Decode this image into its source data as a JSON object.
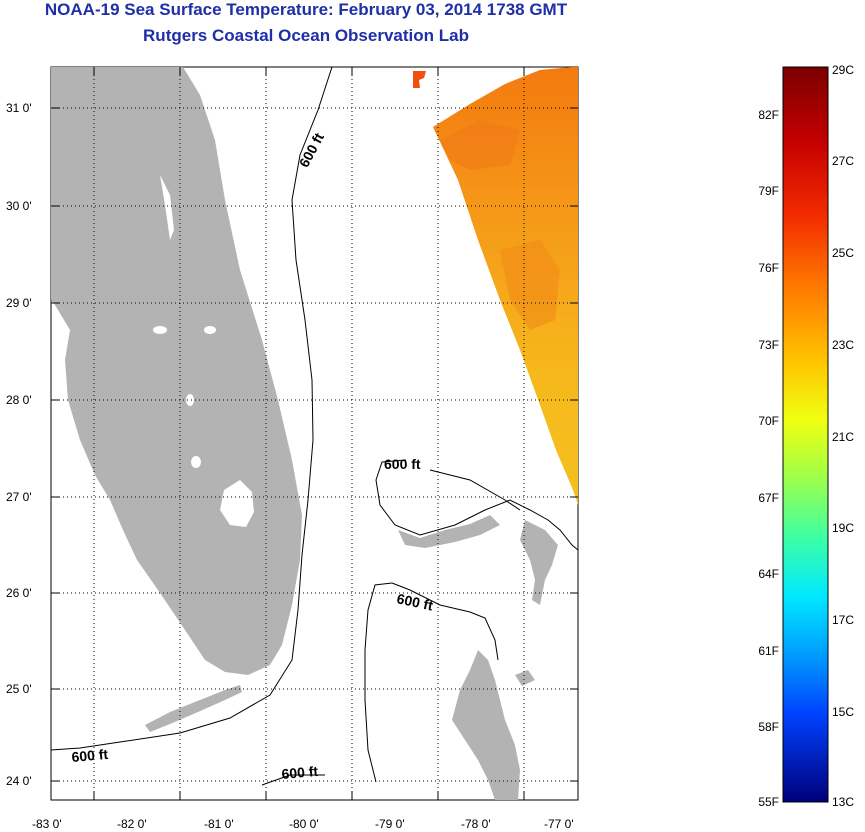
{
  "title": {
    "line1": "NOAA-19 Sea Surface Temperature:  February 03, 2014 1738 GMT",
    "line2": "Rutgers Coastal Ocean Observation Lab"
  },
  "colors": {
    "land": "#b3b3b3",
    "title": "#1f2fa8",
    "contour": "#000000"
  },
  "map": {
    "lat_ticks": [
      "31 0'",
      "30 0'",
      "29 0'",
      "28 0'",
      "27 0'",
      "26 0'",
      "25 0'",
      "24 0'"
    ],
    "lon_ticks": [
      "-83 0'",
      "-82 0'",
      "-81 0'",
      "-80 0'",
      "-79 0'",
      "-78 0'",
      "-77 0'"
    ],
    "contour_labels": [
      "600 ft",
      "600 ft",
      "600 ft",
      "600 ft",
      "600 ft"
    ]
  },
  "colorbar": {
    "fahrenheit": [
      "82F",
      "79F",
      "76F",
      "73F",
      "70F",
      "67F",
      "64F",
      "61F",
      "58F",
      "55F"
    ],
    "celsius": [
      "29C",
      "27C",
      "25C",
      "23C",
      "21C",
      "19C",
      "17C",
      "15C",
      "13C"
    ]
  }
}
